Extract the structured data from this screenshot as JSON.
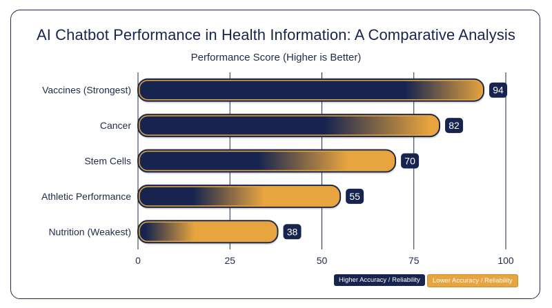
{
  "colors": {
    "high": "#16244f",
    "low": "#e7a43f",
    "frame": "#1e2a4a",
    "grid": "#1e2a4a"
  },
  "chart_data": {
    "type": "bar",
    "orientation": "horizontal",
    "title": "AI Chatbot Performance in Health Information: A Comparative Analysis",
    "subtitle": "Performance Score (Higher is Better)",
    "categories": [
      "Vaccines (Strongest)",
      "Cancer",
      "Stem Cells",
      "Athletic Performance",
      "Nutrition (Weakest)"
    ],
    "values": [
      94,
      82,
      70,
      55,
      38
    ],
    "xlim": [
      0,
      100
    ],
    "xticks": [
      0,
      25,
      50,
      75,
      100
    ],
    "grid": true,
    "legend_position": "bottom-right",
    "legend": [
      {
        "label": "Higher Accuracy / Reliability",
        "color": "#16244f"
      },
      {
        "label": "Lower Accuracy / Reliability",
        "color": "#e7a43f"
      }
    ]
  }
}
